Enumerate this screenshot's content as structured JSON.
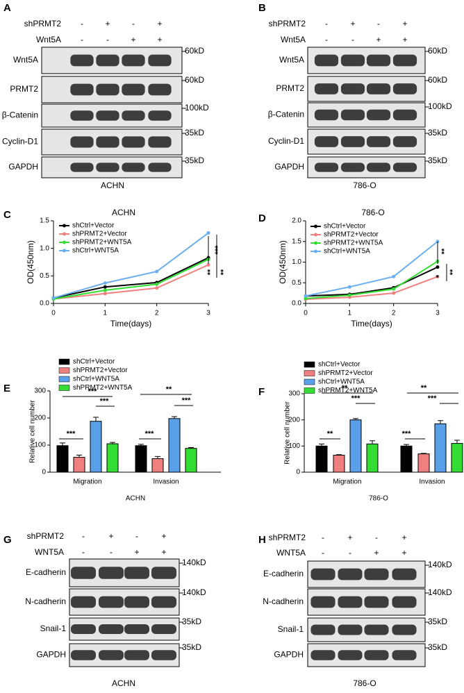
{
  "blots": [
    {
      "panel": "A",
      "caption": "ACHN",
      "conditions": [
        {
          "name": "shPRMT2",
          "signs": [
            "-",
            "+",
            "-",
            "+"
          ]
        },
        {
          "name": "Wnt5A",
          "signs": [
            "-",
            "-",
            "+",
            "+"
          ]
        }
      ],
      "rows": [
        {
          "name": "Wnt5A",
          "marker": "60kD"
        },
        {
          "name": "PRMT2",
          "marker": "60kD"
        },
        {
          "name": "β-Catenin",
          "marker": "100kD"
        },
        {
          "name": "Cyclin-D1",
          "marker": "35kD"
        },
        {
          "name": "GAPDH",
          "marker": "35kD"
        }
      ]
    },
    {
      "panel": "B",
      "caption": "786-O",
      "conditions": [
        {
          "name": "shPRMT2",
          "signs": [
            "-",
            "+",
            "-",
            "+"
          ]
        },
        {
          "name": "Wnt5A",
          "signs": [
            "-",
            "-",
            "+",
            "+"
          ]
        }
      ],
      "rows": [
        {
          "name": "Wnt5A",
          "marker": "60kD"
        },
        {
          "name": "PRMT2",
          "marker": "60kD"
        },
        {
          "name": "β-Catenin",
          "marker": "100kD"
        },
        {
          "name": "Cyclin-D1",
          "marker": "35kD"
        },
        {
          "name": "GAPDH",
          "marker": "35kD"
        }
      ]
    },
    {
      "panel": "G",
      "caption": "ACHN",
      "conditions": [
        {
          "name": "shPRMT2",
          "signs": [
            "-",
            "+",
            "-",
            "+"
          ]
        },
        {
          "name": "WNT5A",
          "signs": [
            "-",
            "-",
            "+",
            "+"
          ]
        }
      ],
      "rows": [
        {
          "name": "E-cadherin",
          "marker": "140kD"
        },
        {
          "name": "N-cadherin",
          "marker": "140kD"
        },
        {
          "name": "Snail-1",
          "marker": "35kD"
        },
        {
          "name": "GAPDH",
          "marker": "35kD"
        }
      ]
    },
    {
      "panel": "H",
      "caption": "786-O",
      "conditions": [
        {
          "name": "shPRMT2",
          "signs": [
            "-",
            "+",
            "-",
            "+"
          ]
        },
        {
          "name": "WNT5A",
          "signs": [
            "-",
            "-",
            "+",
            "+"
          ]
        }
      ],
      "rows": [
        {
          "name": "E-cadherin",
          "marker": "140kD"
        },
        {
          "name": "N-cadherin",
          "marker": "140kD"
        },
        {
          "name": "Snail-1",
          "marker": "35kD"
        },
        {
          "name": "GAPDH",
          "marker": "35kD"
        }
      ]
    }
  ],
  "chart_data": [
    {
      "type": "line",
      "panel": "C",
      "title": "ACHN",
      "x_label": "Time(days)",
      "y_label": "OD(450nm)",
      "x": [
        0,
        1,
        2,
        3
      ],
      "xlim": [
        0,
        3
      ],
      "xticks": [
        0,
        1,
        2,
        3
      ],
      "ylim": [
        0,
        1.5
      ],
      "yticks": [
        {
          "value": 0,
          "label": "0.0"
        },
        0.5,
        {
          "value": 1,
          "label": "1.0"
        },
        1.5
      ],
      "series": [
        {
          "name": "shCtrl+Vector",
          "color": "#000000",
          "values": [
            0.1,
            0.3,
            0.38,
            0.83
          ]
        },
        {
          "name": "shPRMT2+Vector",
          "color": "#f08080",
          "values": [
            0.08,
            0.18,
            0.28,
            0.7
          ]
        },
        {
          "name": "shPRMT2+WNT5A",
          "color": "#33dd33",
          "values": [
            0.08,
            0.24,
            0.35,
            0.8
          ]
        },
        {
          "name": "shCtrl+WNT5A",
          "color": "#6aaef0",
          "values": [
            0.1,
            0.37,
            0.58,
            1.28
          ]
        }
      ],
      "annotations": [
        "***",
        "**",
        "**"
      ]
    },
    {
      "type": "line",
      "panel": "D",
      "title": "786-O",
      "x_label": "Time(days)",
      "y_label": "OD(450nm)",
      "x": [
        0,
        1,
        2,
        3
      ],
      "xlim": [
        0,
        3
      ],
      "xticks": [
        0,
        1,
        2,
        3
      ],
      "ylim": [
        0,
        2
      ],
      "yticks": [
        {
          "value": 0,
          "label": "0.0"
        },
        0.5,
        {
          "value": 1,
          "label": "1.0"
        },
        1.5,
        {
          "value": 2,
          "label": "2.0"
        }
      ],
      "series": [
        {
          "name": "shCtrl+Vector",
          "color": "#000000",
          "values": [
            0.18,
            0.22,
            0.38,
            0.88
          ]
        },
        {
          "name": "shPRMT2+Vector",
          "color": "#f08080",
          "values": [
            0.1,
            0.15,
            0.25,
            0.65
          ]
        },
        {
          "name": "shPRMT2+WNT5A",
          "color": "#33dd33",
          "values": [
            0.12,
            0.2,
            0.35,
            1.02
          ]
        },
        {
          "name": "shCtrl+WNT5A",
          "color": "#6aaef0",
          "values": [
            0.18,
            0.4,
            0.65,
            1.5
          ]
        }
      ],
      "annotations": [
        "**",
        "*",
        "**"
      ]
    },
    {
      "type": "bar",
      "panel": "E",
      "caption": "ACHN",
      "y_label": "Relative cell number",
      "categories": [
        "Migration",
        "Invasion"
      ],
      "ylim": [
        0,
        300
      ],
      "yticks": [
        0,
        100,
        200,
        300
      ],
      "series": [
        {
          "name": "shCtrl+Vector",
          "color": "#000000",
          "values": [
            98,
            98
          ],
          "errors": [
            10,
            5
          ]
        },
        {
          "name": "shPRMT2+Vector",
          "color": "#f08080",
          "values": [
            55,
            50
          ],
          "errors": [
            8,
            8
          ]
        },
        {
          "name": "shCtrl+WNT5A",
          "color": "#5aa0e8",
          "values": [
            188,
            198
          ],
          "errors": [
            15,
            7
          ]
        },
        {
          "name": "shPRMT2+WNT5A",
          "color": "#33dd33",
          "values": [
            105,
            88
          ],
          "errors": [
            5,
            3
          ]
        }
      ],
      "annotations": [
        "***",
        "***",
        "***",
        "***",
        "**",
        "***"
      ]
    },
    {
      "type": "bar",
      "panel": "F",
      "caption": "786-O",
      "y_label": "Relative cell number",
      "categories": [
        "Migration",
        "Invasion"
      ],
      "ylim": [
        0,
        300
      ],
      "yticks": [
        0,
        100,
        200,
        300
      ],
      "series": [
        {
          "name": "shCtrl+Vector",
          "color": "#000000",
          "values": [
            100,
            100
          ],
          "errors": [
            8,
            6
          ]
        },
        {
          "name": "shPRMT2+Vector",
          "color": "#f08080",
          "values": [
            65,
            70
          ],
          "errors": [
            2,
            2
          ]
        },
        {
          "name": "shCtrl+WNT5A",
          "color": "#5aa0e8",
          "values": [
            200,
            185
          ],
          "errors": [
            5,
            12
          ]
        },
        {
          "name": "shPRMT2+WNT5A",
          "color": "#33dd33",
          "values": [
            108,
            110
          ],
          "errors": [
            12,
            12
          ]
        }
      ],
      "annotations": [
        "**",
        "**",
        "***",
        "***",
        "**",
        "***"
      ]
    }
  ]
}
